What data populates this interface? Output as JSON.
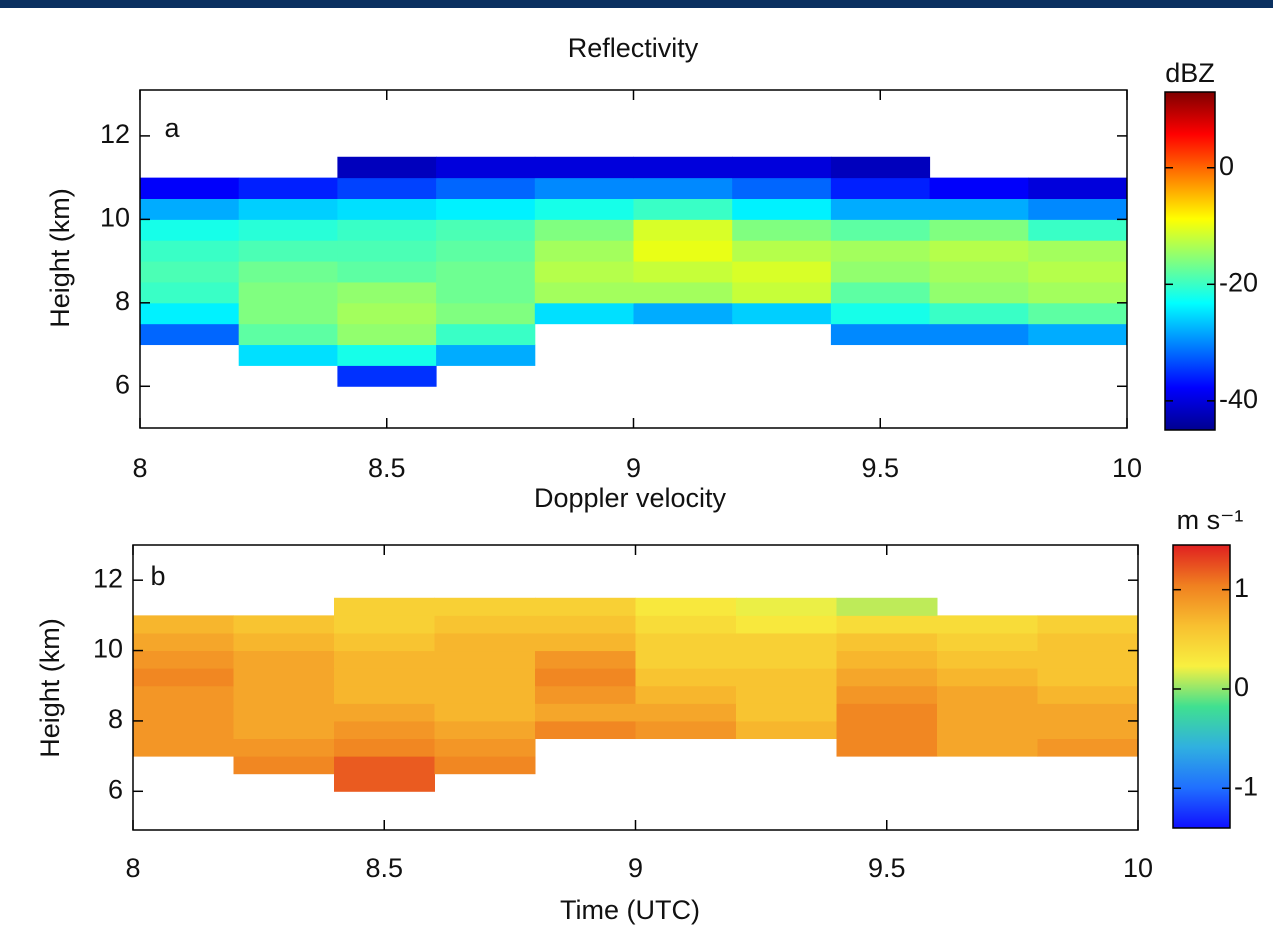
{
  "chart_data": [
    {
      "type": "heatmap",
      "title": "Reflectivity",
      "panel_label": "a",
      "ylabel": "Height (km)",
      "colorbar_label": "dBZ",
      "colormap": [
        "#00008f",
        "#0000ff",
        "#0080ff",
        "#00ffff",
        "#80ff80",
        "#ffff00",
        "#ff8000",
        "#ff0000",
        "#800000"
      ],
      "clim": [
        -45,
        13
      ],
      "cticks": [
        -40,
        -20,
        0
      ],
      "xlim": [
        8,
        10
      ],
      "xticks": [
        8,
        8.5,
        9,
        9.5,
        10
      ],
      "ylim": [
        5,
        13.1
      ],
      "yticks": [
        6,
        8,
        10,
        12
      ],
      "x": [
        8.1,
        8.3,
        8.5,
        8.7,
        8.9,
        9.1,
        9.3,
        9.5,
        9.7,
        9.9
      ],
      "y": [
        6.25,
        6.75,
        7.25,
        7.75,
        8.25,
        8.75,
        9.25,
        9.75,
        10.25,
        10.75,
        11.25
      ],
      "z": [
        [
          null,
          null,
          -35,
          null,
          null,
          null,
          null,
          null,
          null,
          null
        ],
        [
          null,
          -25,
          -22,
          -28,
          null,
          null,
          null,
          null,
          null,
          null
        ],
        [
          -32,
          -18,
          -15,
          -20,
          null,
          null,
          null,
          -30,
          -30,
          -28
        ],
        [
          -24,
          -16,
          -14,
          -16,
          -25,
          -28,
          -26,
          -22,
          -20,
          -18
        ],
        [
          -20,
          -16,
          -15,
          -17,
          -14,
          -14,
          -12,
          -18,
          -15,
          -14
        ],
        [
          -19,
          -17,
          -18,
          -17,
          -13,
          -12,
          -11,
          -15,
          -14,
          -13
        ],
        [
          -20,
          -19,
          -19,
          -18,
          -14,
          -10,
          -13,
          -14,
          -13,
          -14
        ],
        [
          -22,
          -21,
          -20,
          -19,
          -16,
          -11,
          -16,
          -18,
          -16,
          -20
        ],
        [
          -28,
          -26,
          -25,
          -24,
          -22,
          -20,
          -24,
          -28,
          -28,
          -30
        ],
        [
          -38,
          -36,
          -34,
          -32,
          -30,
          -30,
          -32,
          -36,
          -38,
          -40
        ],
        [
          null,
          null,
          -42,
          -40,
          -40,
          -40,
          -40,
          -42,
          null,
          null
        ]
      ]
    },
    {
      "type": "heatmap",
      "title": "Doppler velocity",
      "panel_label": "b",
      "ylabel": "Height (km)",
      "xlabel": "Time (UTC)",
      "colorbar_label": "m s⁻¹",
      "colormap": [
        "#1010ff",
        "#2070ff",
        "#30b0e0",
        "#40e090",
        "#f8f040",
        "#f8c030",
        "#f08020",
        "#e02020"
      ],
      "clim": [
        -1.4,
        1.45
      ],
      "cticks": [
        -1,
        0,
        1
      ],
      "xlim": [
        8,
        10
      ],
      "xticks": [
        8,
        8.5,
        9,
        9.5,
        10
      ],
      "ylim": [
        4.9,
        13
      ],
      "yticks": [
        6,
        8,
        10,
        12
      ],
      "x": [
        8.1,
        8.3,
        8.5,
        8.7,
        8.9,
        9.1,
        9.3,
        9.5,
        9.7,
        9.9
      ],
      "y": [
        6.25,
        6.75,
        7.25,
        7.75,
        8.25,
        8.75,
        9.25,
        9.75,
        10.25,
        10.75,
        11.25
      ],
      "z": [
        [
          null,
          null,
          1.2,
          null,
          null,
          null,
          null,
          null,
          null,
          null
        ],
        [
          null,
          1.0,
          1.2,
          1.0,
          null,
          null,
          null,
          null,
          null,
          null
        ],
        [
          0.9,
          0.9,
          1.0,
          0.9,
          null,
          null,
          null,
          1.0,
          0.8,
          0.9
        ],
        [
          0.9,
          0.8,
          0.9,
          0.8,
          1.0,
          0.9,
          0.7,
          1.0,
          0.8,
          0.8
        ],
        [
          0.9,
          0.8,
          0.8,
          0.7,
          0.8,
          0.8,
          0.6,
          1.0,
          0.8,
          0.8
        ],
        [
          0.9,
          0.8,
          0.7,
          0.7,
          0.9,
          0.7,
          0.6,
          0.9,
          0.8,
          0.7
        ],
        [
          1.0,
          0.8,
          0.7,
          0.7,
          1.0,
          0.6,
          0.6,
          0.8,
          0.7,
          0.6
        ],
        [
          0.9,
          0.8,
          0.7,
          0.7,
          0.9,
          0.5,
          0.5,
          0.7,
          0.6,
          0.6
        ],
        [
          0.8,
          0.7,
          0.6,
          0.7,
          0.7,
          0.5,
          0.5,
          0.6,
          0.5,
          0.6
        ],
        [
          0.7,
          0.6,
          0.5,
          0.6,
          0.6,
          0.4,
          0.3,
          0.4,
          0.4,
          0.5
        ],
        [
          null,
          null,
          0.5,
          0.5,
          0.5,
          0.3,
          0.2,
          0.1,
          null,
          null
        ]
      ]
    }
  ]
}
